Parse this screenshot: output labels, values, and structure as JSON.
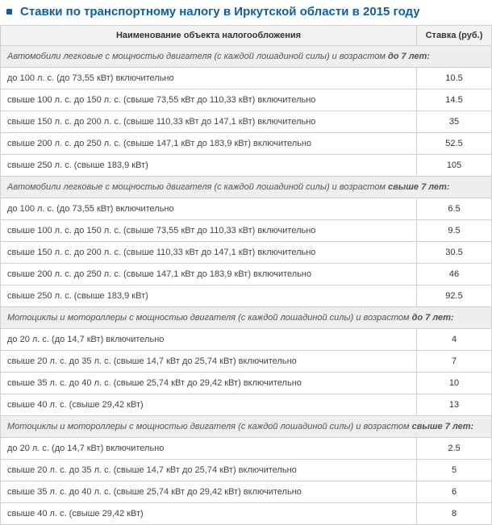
{
  "title": "Ставки по транспортному налогу в Иркутской области в 2015 году",
  "colors": {
    "accent": "#0b5ea8",
    "border": "#d0d0d0",
    "section_bg": "#eeeeee",
    "header_bg": "#f2f2f2",
    "text": "#333333"
  },
  "table": {
    "headers": {
      "name": "Наименование объекта налогообложения",
      "rate": "Ставка (руб.)"
    },
    "sections": [
      {
        "title_prefix": "Автомобили легковые с мощностью двигателя (с каждой лошадиной силы) и возрастом ",
        "title_bold": "до 7 лет:",
        "rows": [
          {
            "name": "до 100 л. с. (до 73,55 кВт) включительно",
            "rate": "10.5"
          },
          {
            "name": "свыше 100 л. с. до 150 л. с. (свыше 73,55 кВт до 110,33 кВт) включительно",
            "rate": "14.5"
          },
          {
            "name": "свыше 150 л. с. до 200 л. с. (свыше 110,33 кВт до 147,1 кВт) включительно",
            "rate": "35"
          },
          {
            "name": "свыше 200 л. с. до 250 л. с. (свыше 147,1 кВт до 183,9 кВт) включительно",
            "rate": "52.5"
          },
          {
            "name": "свыше 250 л. с. (свыше 183,9 кВт)",
            "rate": "105"
          }
        ]
      },
      {
        "title_prefix": "Автомобили легковые с мощностью двигателя (с каждой лошадиной силы) и возрастом ",
        "title_bold": "свыше 7 лет:",
        "rows": [
          {
            "name": "до 100 л. с. (до 73,55 кВт) включительно",
            "rate": "6.5"
          },
          {
            "name": "свыше 100 л. с. до 150 л. с. (свыше 73,55 кВт до 110,33 кВт) включительно",
            "rate": "9.5"
          },
          {
            "name": "свыше 150 л. с. до 200 л. с. (свыше 110,33 кВт до 147,1 кВт) включительно",
            "rate": "30.5"
          },
          {
            "name": "свыше 200 л. с. до 250 л. с. (свыше 147,1 кВт до 183,9 кВт) включительно",
            "rate": "46"
          },
          {
            "name": "свыше 250 л. с. (свыше 183,9 кВт)",
            "rate": "92.5"
          }
        ]
      },
      {
        "title_prefix": "Мотоциклы и мотороллеры с мощностью двигателя (с каждой лошадиной силы) и возрастом ",
        "title_bold": "до 7 лет:",
        "rows": [
          {
            "name": "до 20 л. с. (до 14,7 кВт) включительно",
            "rate": "4"
          },
          {
            "name": "свыше 20 л. с. до 35 л. с. (свыше 14,7 кВт до 25,74 кВт) включительно",
            "rate": "7"
          },
          {
            "name": "свыше 35 л. с. до 40 л. с. (свыше 25,74 кВт до 29,42 кВт) включительно",
            "rate": "10"
          },
          {
            "name": "свыше 40 л. с. (свыше 29,42 кВт)",
            "rate": "13"
          }
        ]
      },
      {
        "title_prefix": "Мотоциклы и мотороллеры с мощностью двигателя (с каждой лошадиной силы) и возрастом ",
        "title_bold": "свыше 7 лет:",
        "rows": [
          {
            "name": "до 20 л. с. (до 14,7 кВт) включительно",
            "rate": "2.5"
          },
          {
            "name": "свыше 20 л. с. до 35 л. с. (свыше 14,7 кВт до 25,74 кВт) включительно",
            "rate": "5"
          },
          {
            "name": "свыше 35 л. с. до 40 л. с. (свыше 25,74 кВт до 29,42 кВт) включительно",
            "rate": "6"
          },
          {
            "name": "свыше 40 л. с. (свыше 29,42 кВт)",
            "rate": "8"
          }
        ]
      }
    ]
  }
}
